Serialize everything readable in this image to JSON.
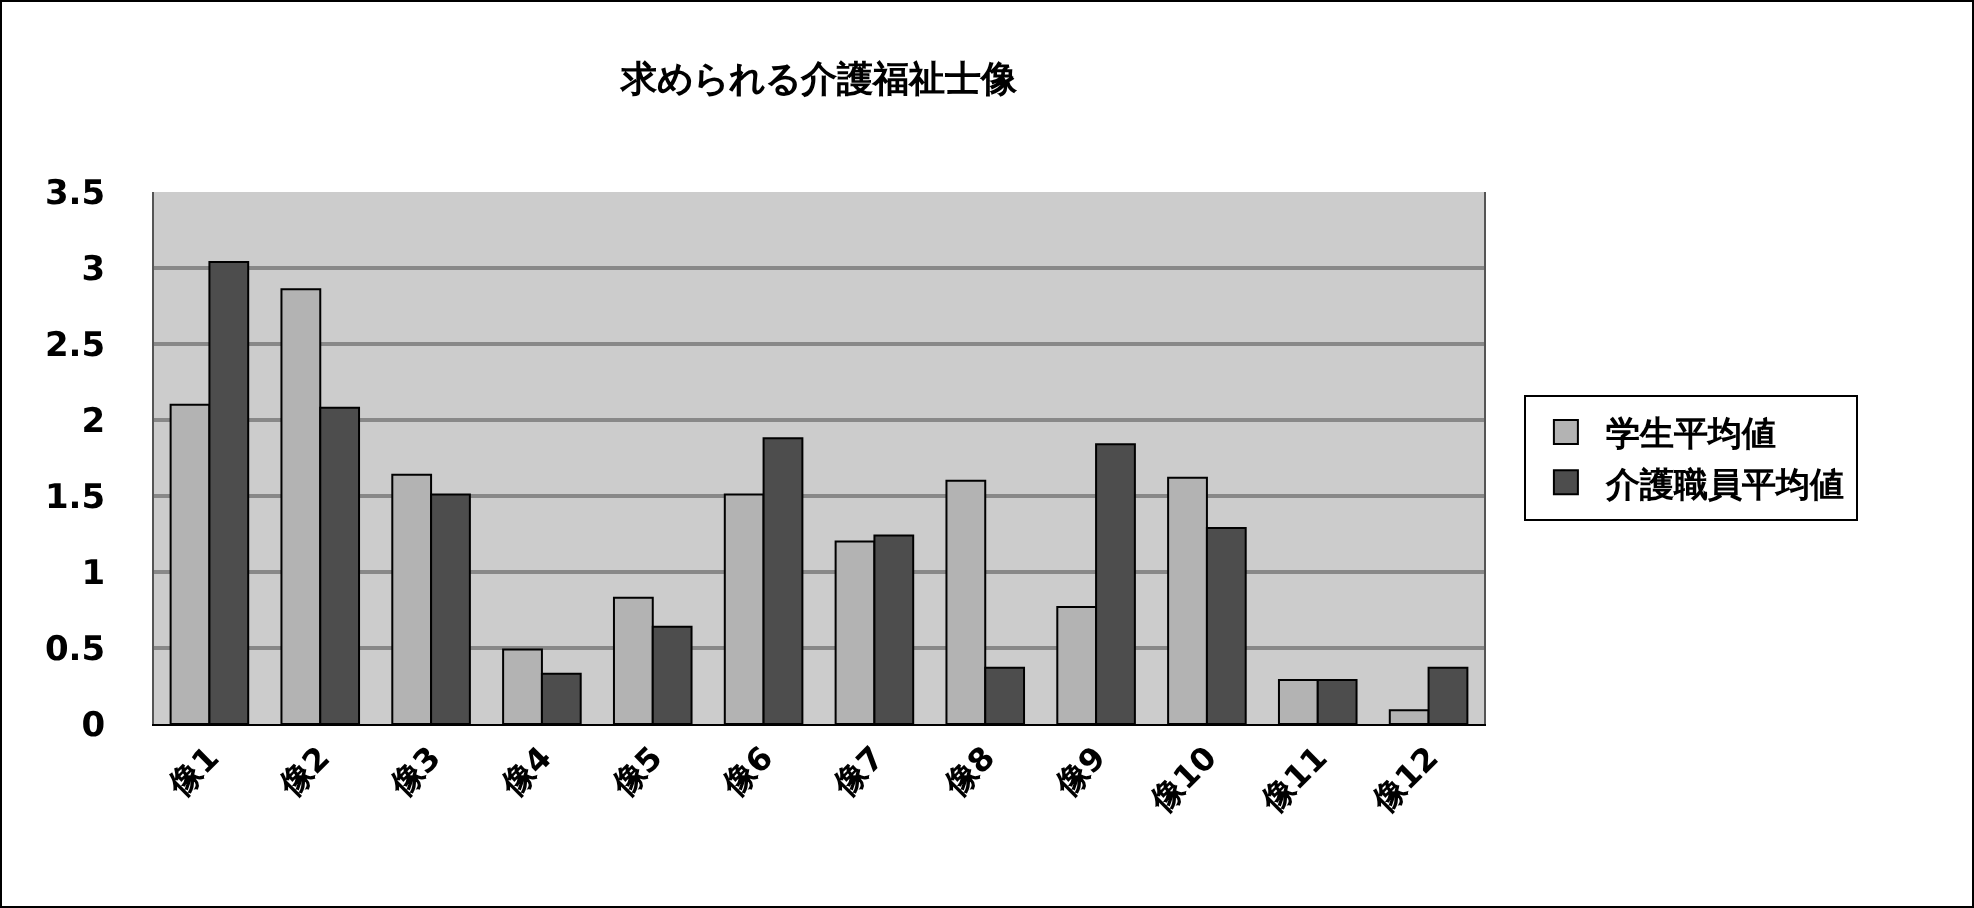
{
  "chart_data": {
    "type": "bar",
    "title": "求められる介護福祉士像",
    "categories": [
      "像1",
      "像2",
      "像3",
      "像4",
      "像5",
      "像6",
      "像7",
      "像8",
      "像9",
      "像10",
      "像11",
      "像12"
    ],
    "series": [
      {
        "name": "学生平均値",
        "color": "#b3b3b3",
        "values": [
          2.1,
          2.86,
          1.64,
          0.49,
          0.83,
          1.51,
          1.2,
          1.6,
          0.77,
          1.62,
          0.29,
          0.09
        ]
      },
      {
        "name": "介護職員平均値",
        "color": "#4d4d4d",
        "values": [
          3.04,
          2.08,
          1.51,
          0.33,
          0.64,
          1.88,
          1.24,
          0.37,
          1.84,
          1.29,
          0.29,
          0.37
        ]
      }
    ],
    "ylim": [
      0,
      3.5
    ],
    "yticks": [
      0,
      0.5,
      1,
      1.5,
      2,
      2.5,
      3,
      3.5
    ],
    "grid": "y",
    "legend": "right"
  }
}
